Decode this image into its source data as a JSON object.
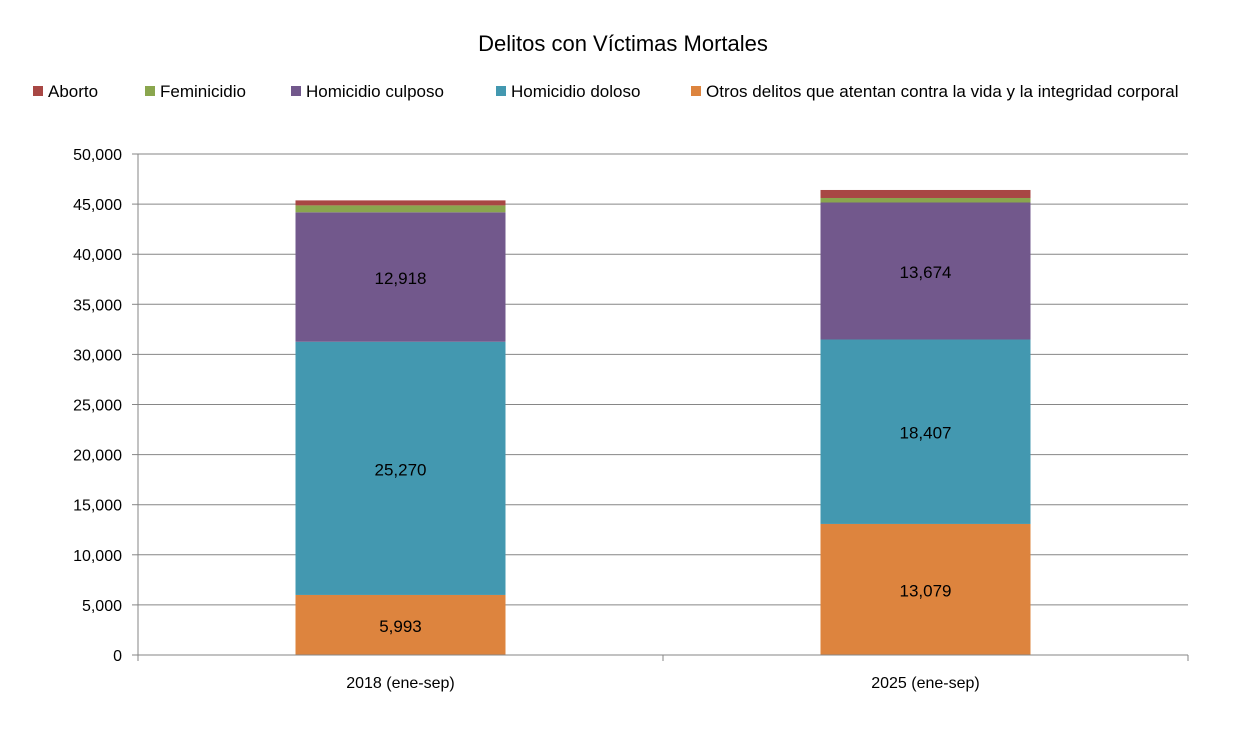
{
  "chart_data": {
    "type": "stacked-bar",
    "title": "Delitos con Víctimas Mortales",
    "categories": [
      "2018 (ene-sep)",
      "2025 (ene-sep)"
    ],
    "ylim": [
      0,
      50000
    ],
    "yticks": [
      0,
      5000,
      10000,
      15000,
      20000,
      25000,
      30000,
      35000,
      40000,
      45000,
      50000
    ],
    "ytick_labels": [
      "0",
      "5,000",
      "10,000",
      "15,000",
      "20,000",
      "25,000",
      "30,000",
      "35,000",
      "40,000",
      "45,000",
      "50,000"
    ],
    "grid": true,
    "legend_position": "top",
    "series": [
      {
        "name": "Otros delitos que atentan contra la vida y la integridad corporal",
        "color": "#DD843E",
        "values": [
          5993,
          13079
        ],
        "labels": [
          "5,993",
          "13,079"
        ]
      },
      {
        "name": "Homicidio doloso",
        "color": "#4398B0",
        "values": [
          25270,
          18407
        ],
        "labels": [
          "25,270",
          "18,407"
        ]
      },
      {
        "name": "Homicidio culposo",
        "color": "#72588C",
        "values": [
          12918,
          13674
        ],
        "labels": [
          "12,918",
          "13,674"
        ]
      },
      {
        "name": "Feminicidio",
        "color": "#8AA64E",
        "values": [
          690,
          450
        ],
        "labels": [
          "",
          ""
        ]
      },
      {
        "name": "Aborto",
        "color": "#A84744",
        "values": [
          500,
          800
        ],
        "labels": [
          "",
          ""
        ]
      }
    ],
    "legend_order": [
      "Aborto",
      "Feminicidio",
      "Homicidio culposo",
      "Homicidio doloso",
      "Otros delitos que atentan contra la vida y la integridad corporal"
    ]
  }
}
